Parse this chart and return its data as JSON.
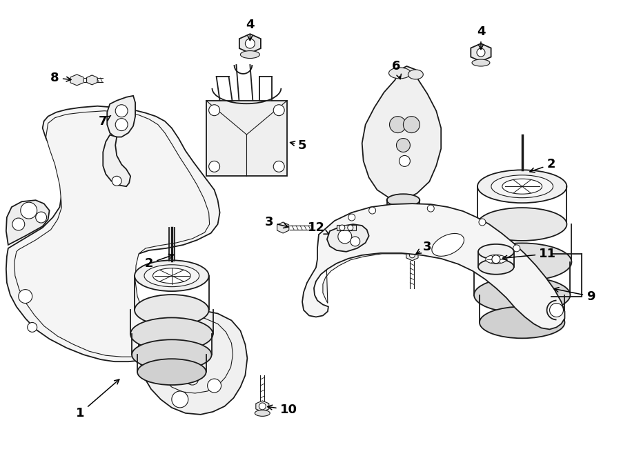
{
  "bg_color": "#ffffff",
  "line_color": "#1a1a1a",
  "fig_width": 9.0,
  "fig_height": 6.61,
  "dpi": 100,
  "label_fontsize": 13,
  "label_fontweight": "bold"
}
